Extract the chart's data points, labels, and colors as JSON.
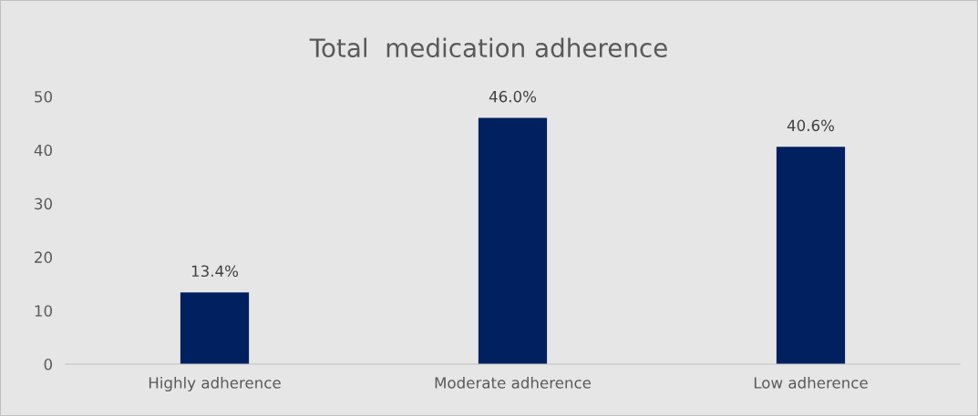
{
  "chart_data": {
    "type": "bar",
    "title": "Total  medication adherence",
    "categories": [
      "Highly adherence",
      "Moderate adherence",
      "Low adherence"
    ],
    "values": [
      13.4,
      46.0,
      40.6
    ],
    "value_labels": [
      "13.4%",
      "46.0%",
      "40.6%"
    ],
    "color": "#002060",
    "ylim": [
      0,
      50
    ],
    "yticks": [
      0,
      10,
      20,
      30,
      40,
      50
    ],
    "grid": false,
    "legend": false
  }
}
